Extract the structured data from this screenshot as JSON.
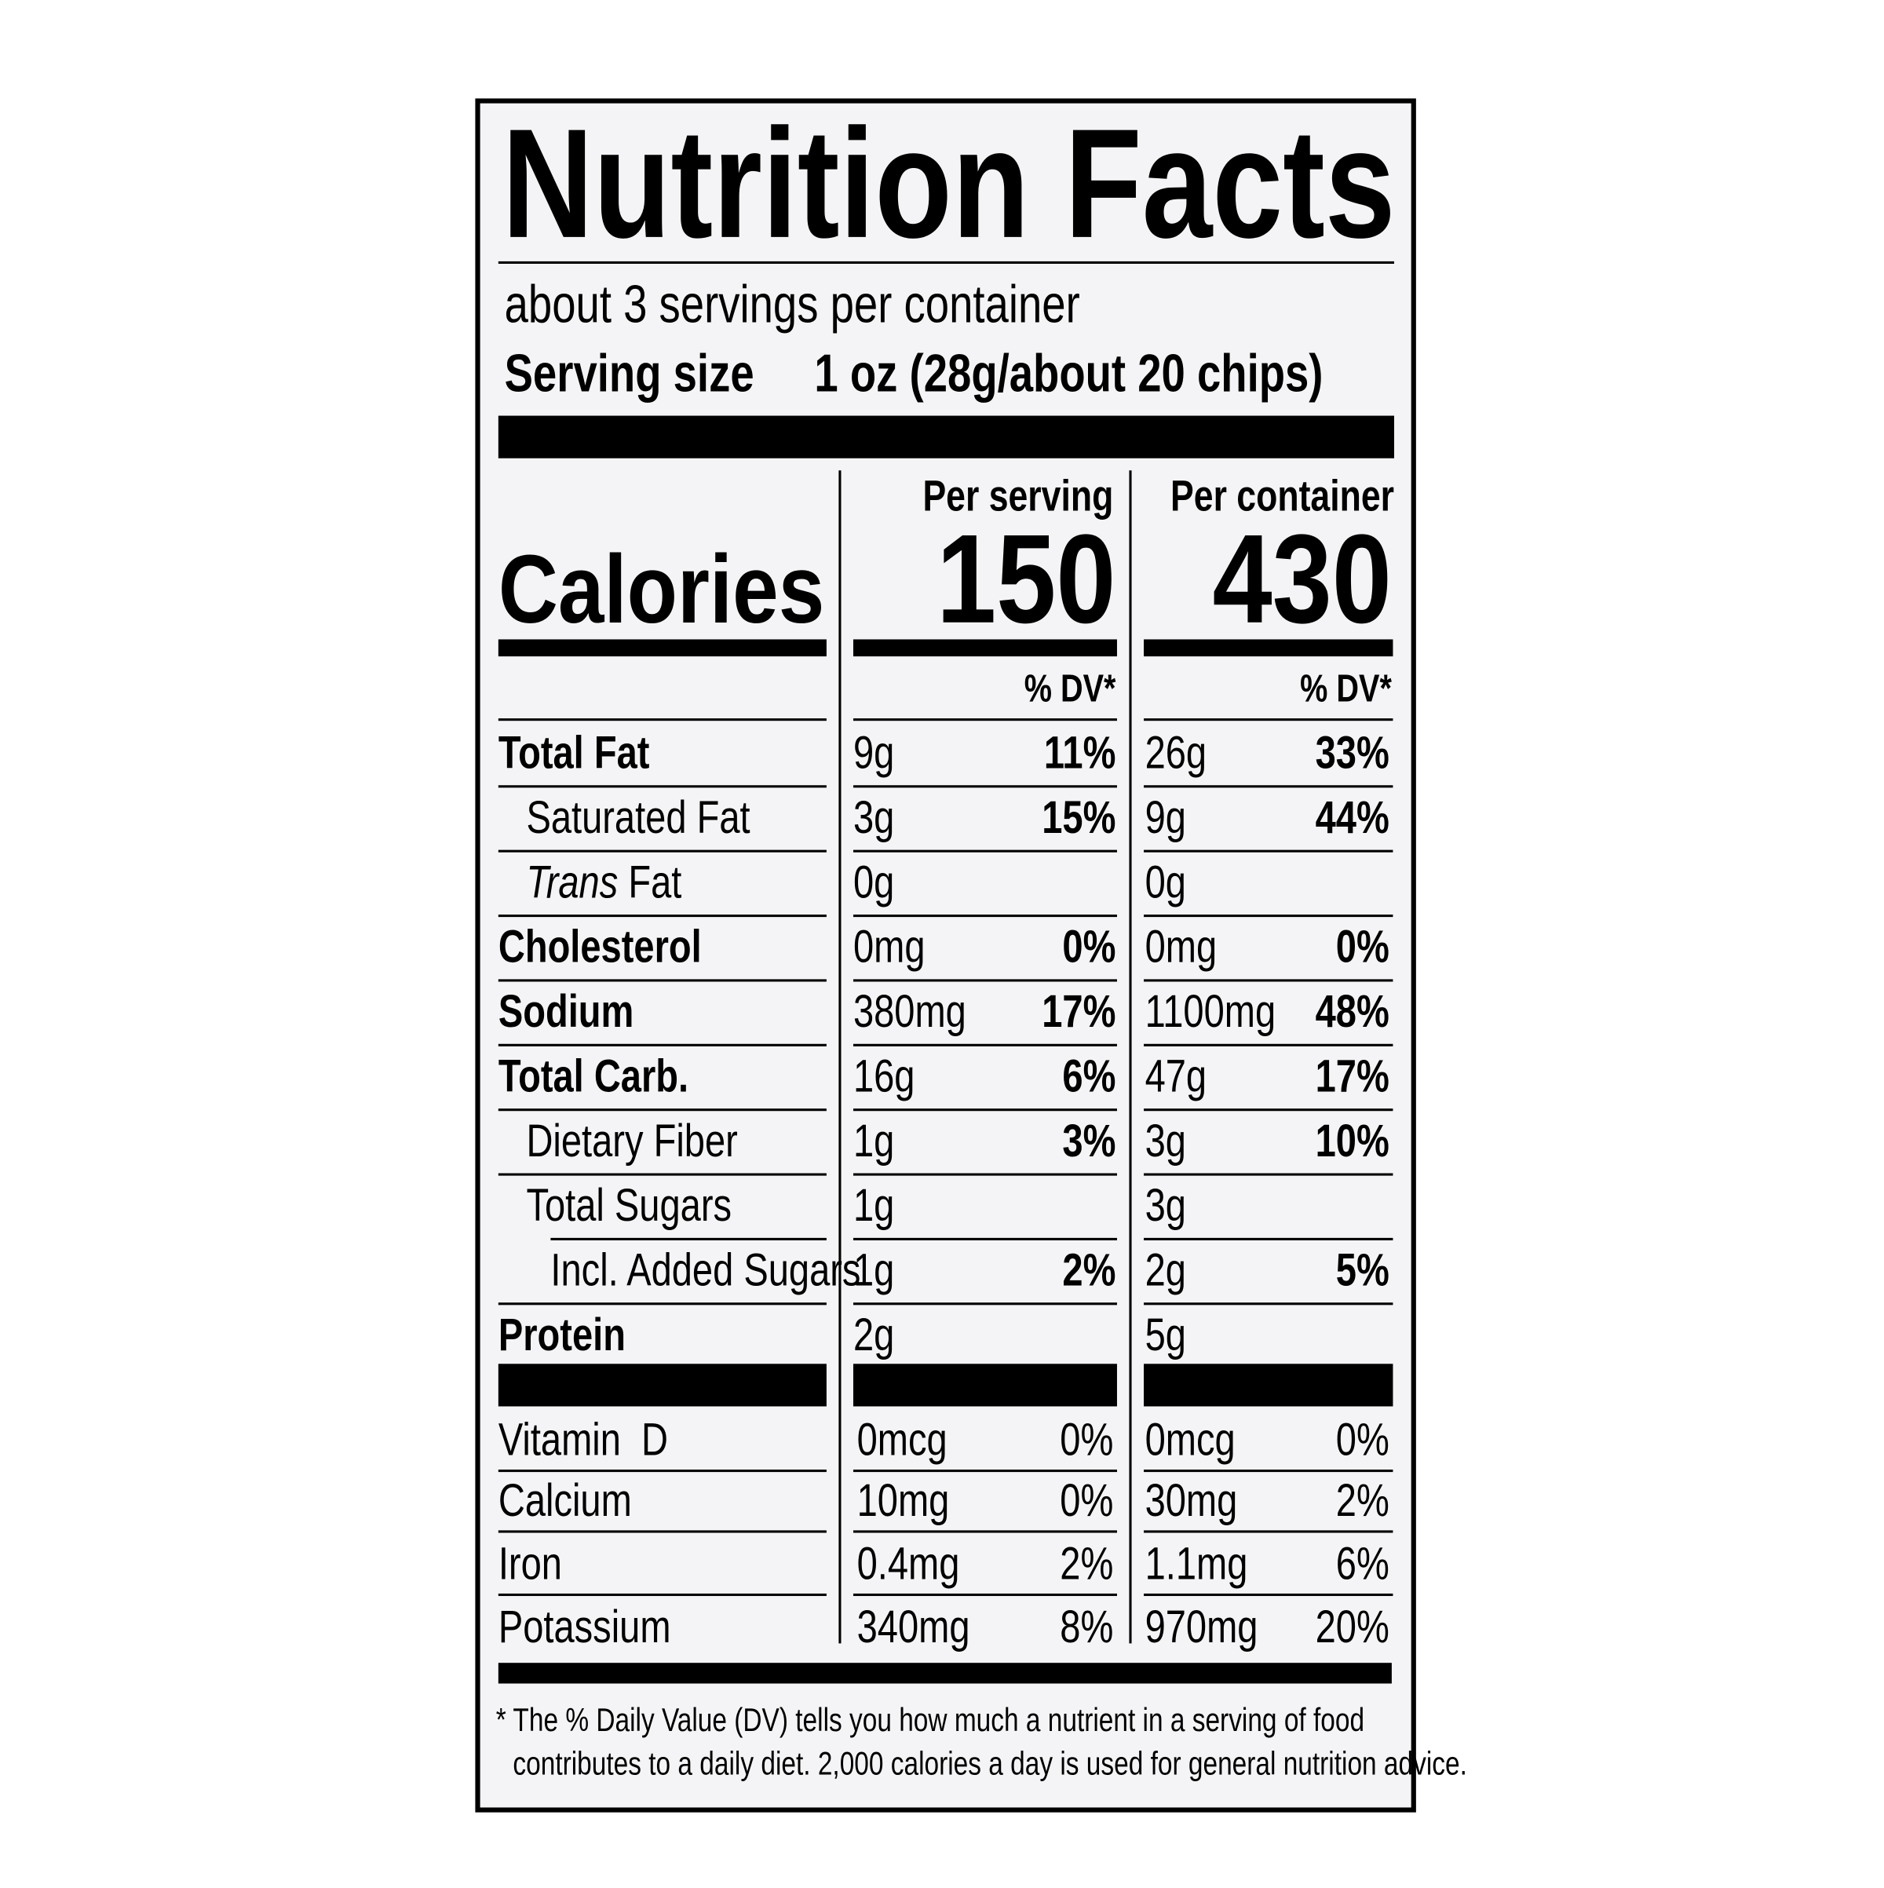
{
  "title": "Nutrition Facts",
  "servings": "about 3 servings per container",
  "serving_size": {
    "label": "Serving size",
    "value": "1 oz (28g/about 20 chips)"
  },
  "columns": [
    "Per serving",
    "Per container"
  ],
  "calories": {
    "label": "Calories",
    "values": [
      "150",
      "430"
    ]
  },
  "dv_header": "% DV*",
  "nutrients": [
    {
      "name_parts": [
        {
          "text": "Total Fat"
        }
      ],
      "bold": true,
      "indent": 0,
      "serving": [
        "9g",
        "11%"
      ],
      "container": [
        "26g",
        "33%"
      ]
    },
    {
      "name_parts": [
        {
          "text": "Saturated Fat"
        }
      ],
      "bold": false,
      "indent": 1,
      "serving": [
        "3g",
        "15%"
      ],
      "container": [
        "9g",
        "44%"
      ]
    },
    {
      "name_parts": [
        {
          "text": "Trans",
          "italic": true
        },
        {
          "text": " Fat"
        }
      ],
      "bold": false,
      "indent": 1,
      "serving": [
        "0g"
      ],
      "container": [
        "0g"
      ]
    },
    {
      "name_parts": [
        {
          "text": "Cholesterol"
        }
      ],
      "bold": true,
      "indent": 0,
      "serving": [
        "0mg",
        "0%"
      ],
      "container": [
        "0mg",
        "0%"
      ]
    },
    {
      "name_parts": [
        {
          "text": "Sodium"
        }
      ],
      "bold": true,
      "indent": 0,
      "serving": [
        "380mg",
        "17%"
      ],
      "container": [
        "1100mg",
        "48%"
      ]
    },
    {
      "name_parts": [
        {
          "text": "Total Carb."
        }
      ],
      "bold": true,
      "indent": 0,
      "serving": [
        "16g",
        "6%"
      ],
      "container": [
        "47g",
        "17%"
      ]
    },
    {
      "name_parts": [
        {
          "text": "Dietary Fiber"
        }
      ],
      "bold": false,
      "indent": 1,
      "serving": [
        "1g",
        "3%"
      ],
      "container": [
        "3g",
        "10%"
      ]
    },
    {
      "name_parts": [
        {
          "text": "Total Sugars"
        }
      ],
      "bold": false,
      "indent": 1,
      "serving": [
        "1g"
      ],
      "container": [
        "3g"
      ]
    },
    {
      "name_parts": [
        {
          "text": "Incl. Added Sugars"
        }
      ],
      "bold": false,
      "indent": 2,
      "serving": [
        "1g",
        "2%"
      ],
      "container": [
        "2g",
        "5%"
      ]
    },
    {
      "name_parts": [
        {
          "text": "Protein"
        }
      ],
      "bold": true,
      "indent": 0,
      "serving": [
        "2g"
      ],
      "container": [
        "5g"
      ]
    }
  ],
  "vitamins": [
    {
      "name": "Vitamin  D",
      "serving": [
        "0mcg",
        "0%"
      ],
      "container": [
        "0mcg",
        "0%"
      ]
    },
    {
      "name": "Calcium",
      "serving": [
        "10mg",
        "0%"
      ],
      "container": [
        "30mg",
        "2%"
      ]
    },
    {
      "name": "Iron",
      "serving": [
        "0.4mg",
        "2%"
      ],
      "container": [
        "1.1mg",
        "6%"
      ]
    },
    {
      "name": "Potassium",
      "serving": [
        "340mg",
        "8%"
      ],
      "container": [
        "970mg",
        "20%"
      ]
    }
  ],
  "footnote": [
    "* The % Daily Value (DV) tells you how much a nutrient in a serving of food",
    "contributes to a daily diet. 2,000 calories a day is used for general nutrition advice."
  ]
}
